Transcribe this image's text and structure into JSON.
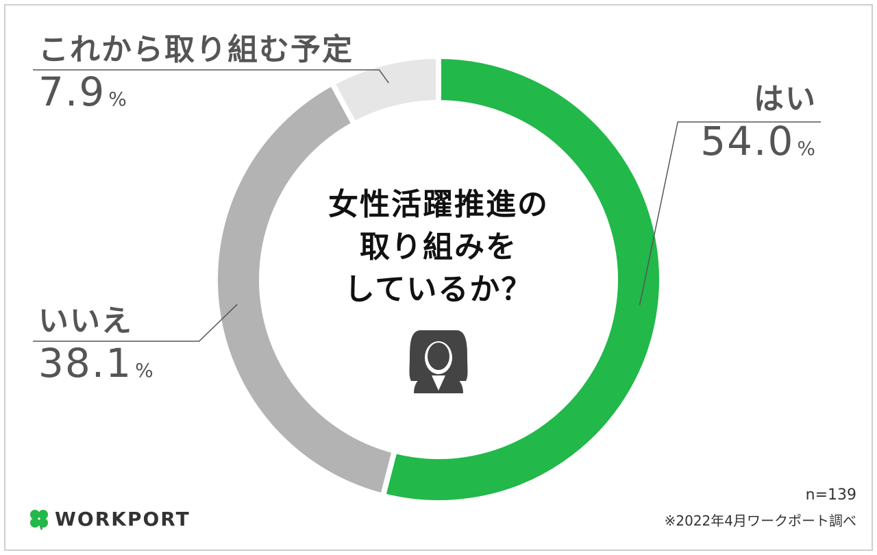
{
  "chart_data": {
    "type": "pie",
    "title": "女性活躍推進の取り組みをしているか？",
    "title_lines": [
      "女性活躍推進の",
      "取り組みを",
      "しているか？"
    ],
    "unit": "%",
    "slices": [
      {
        "label": "はい",
        "value": 54.0,
        "value_text": "54.0",
        "color": "#22b84a"
      },
      {
        "label": "いいえ",
        "value": 38.1,
        "value_text": "38.1",
        "color": "#b3b3b3"
      },
      {
        "label": "これから取り組む予定",
        "value": 7.9,
        "value_text": "7.9",
        "color": "#e6e6e6"
      }
    ]
  },
  "footer": {
    "sample_size": "n=139",
    "source": "※2022年4月ワークポート調べ",
    "logo_text": "WORKPORT"
  },
  "icons": {
    "center": "woman-icon",
    "logo": "clover-icon"
  }
}
